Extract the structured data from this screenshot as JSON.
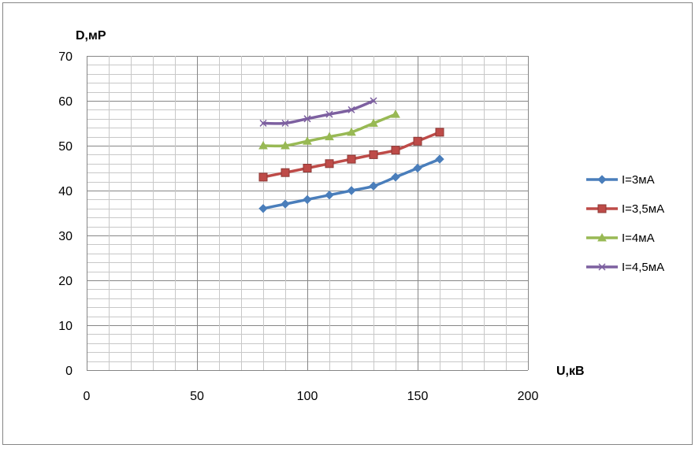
{
  "chart_data": {
    "type": "line",
    "title": "",
    "xlabel": "U,кВ",
    "ylabel": "D,мР",
    "xlim": [
      0,
      200
    ],
    "ylim": [
      0,
      70
    ],
    "x_ticks": [
      0,
      50,
      100,
      150,
      200
    ],
    "y_ticks": [
      0,
      10,
      20,
      30,
      40,
      50,
      60,
      70
    ],
    "grid": "on",
    "legend_position": "right",
    "series": [
      {
        "name": "I=3мА",
        "color": "#4a7ebb",
        "marker": "diamond",
        "x": [
          80,
          90,
          100,
          110,
          120,
          130,
          140,
          150,
          160
        ],
        "y": [
          36,
          37,
          38,
          39,
          40,
          41,
          43,
          45,
          47
        ]
      },
      {
        "name": "I=3,5мА",
        "color": "#be4b48",
        "marker": "square",
        "x": [
          80,
          90,
          100,
          110,
          120,
          130,
          140,
          150,
          160
        ],
        "y": [
          43,
          44,
          45,
          46,
          47,
          48,
          49,
          51,
          53
        ]
      },
      {
        "name": "I=4мА",
        "color": "#98b954",
        "marker": "triangle",
        "x": [
          80,
          90,
          100,
          110,
          120,
          130,
          140
        ],
        "y": [
          50,
          50,
          51,
          52,
          53,
          55,
          57
        ]
      },
      {
        "name": "I=4,5мА",
        "color": "#7d60a0",
        "marker": "cross",
        "x": [
          80,
          90,
          100,
          110,
          120,
          130
        ],
        "y": [
          55,
          55,
          56,
          57,
          58,
          60
        ]
      }
    ]
  }
}
